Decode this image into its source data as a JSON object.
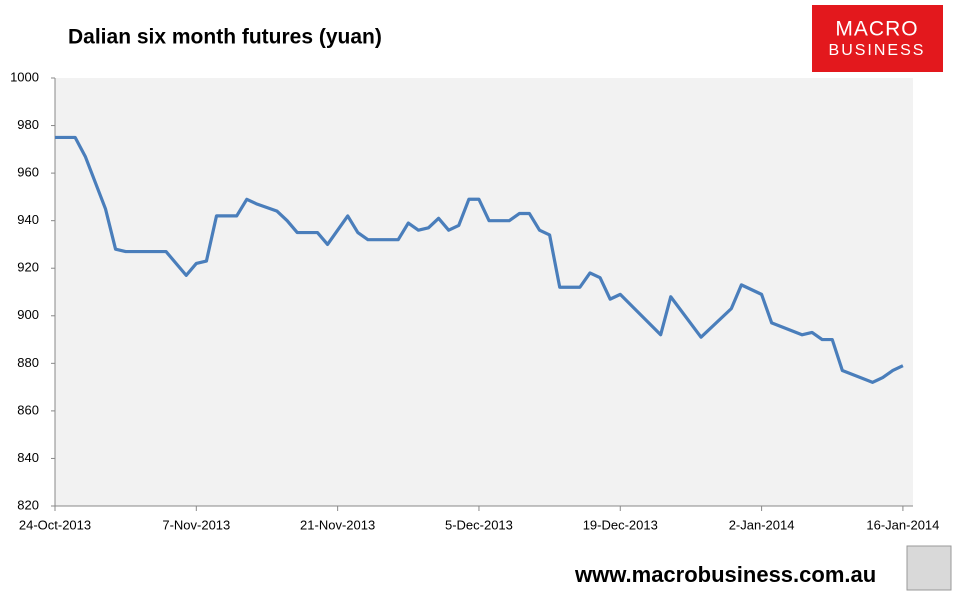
{
  "chart_data": {
    "type": "line",
    "title": "Dalian six month futures (yuan)",
    "x": [
      "2013-10-24",
      "2013-10-26",
      "2013-10-27",
      "2013-10-29",
      "2013-10-30",
      "2013-10-31",
      "2013-11-04",
      "2013-11-06",
      "2013-11-07",
      "2013-11-08",
      "2013-11-09",
      "2013-11-11",
      "2013-11-12",
      "2013-11-13",
      "2013-11-15",
      "2013-11-16",
      "2013-11-17",
      "2013-11-19",
      "2013-11-20",
      "2013-11-22",
      "2013-11-23",
      "2013-11-24",
      "2013-11-27",
      "2013-11-28",
      "2013-11-29",
      "2013-11-30",
      "2013-12-01",
      "2013-12-02",
      "2013-12-03",
      "2013-12-04",
      "2013-12-05",
      "2013-12-06",
      "2013-12-08",
      "2013-12-09",
      "2013-12-10",
      "2013-12-11",
      "2013-12-12",
      "2013-12-13",
      "2013-12-15",
      "2013-12-16",
      "2013-12-17",
      "2013-12-18",
      "2013-12-19",
      "2013-12-23",
      "2013-12-24",
      "2013-12-27",
      "2013-12-30",
      "2013-12-31",
      "2014-01-02",
      "2014-01-03",
      "2014-01-06",
      "2014-01-07",
      "2014-01-08",
      "2014-01-09",
      "2014-01-10",
      "2014-01-13",
      "2014-01-14",
      "2014-01-15",
      "2014-01-16"
    ],
    "series": [
      {
        "name": "Dalian six month futures",
        "color": "#4a7ebb",
        "values": [
          975,
          975,
          967,
          945,
          928,
          927,
          927,
          917,
          922,
          923,
          942,
          942,
          949,
          947,
          944,
          940,
          935,
          935,
          930,
          942,
          935,
          932,
          932,
          939,
          936,
          937,
          941,
          936,
          938,
          949,
          949,
          940,
          940,
          943,
          943,
          936,
          934,
          912,
          912,
          918,
          916,
          907,
          909,
          892,
          908,
          891,
          903,
          913,
          909,
          897,
          892,
          893,
          890,
          890,
          877,
          872,
          874,
          877,
          879
        ]
      }
    ],
    "xlim": [
      "2013-10-24",
      "2014-01-17"
    ],
    "xticks": [
      {
        "value": "2013-10-24",
        "label": "24-Oct-2013"
      },
      {
        "value": "2013-11-07",
        "label": "7-Nov-2013"
      },
      {
        "value": "2013-11-21",
        "label": "21-Nov-2013"
      },
      {
        "value": "2013-12-05",
        "label": "5-Dec-2013"
      },
      {
        "value": "2013-12-19",
        "label": "19-Dec-2013"
      },
      {
        "value": "2014-01-02",
        "label": "2-Jan-2014"
      },
      {
        "value": "2014-01-16",
        "label": "16-Jan-2014"
      }
    ],
    "ylim": [
      820,
      1000
    ],
    "yticks": [
      820,
      840,
      860,
      880,
      900,
      920,
      940,
      960,
      980,
      1000
    ],
    "grid": false
  },
  "logo": {
    "line1": "MACRO",
    "line2": "BUSINESS"
  },
  "footer": {
    "url": "www.macrobusiness.com.au"
  }
}
